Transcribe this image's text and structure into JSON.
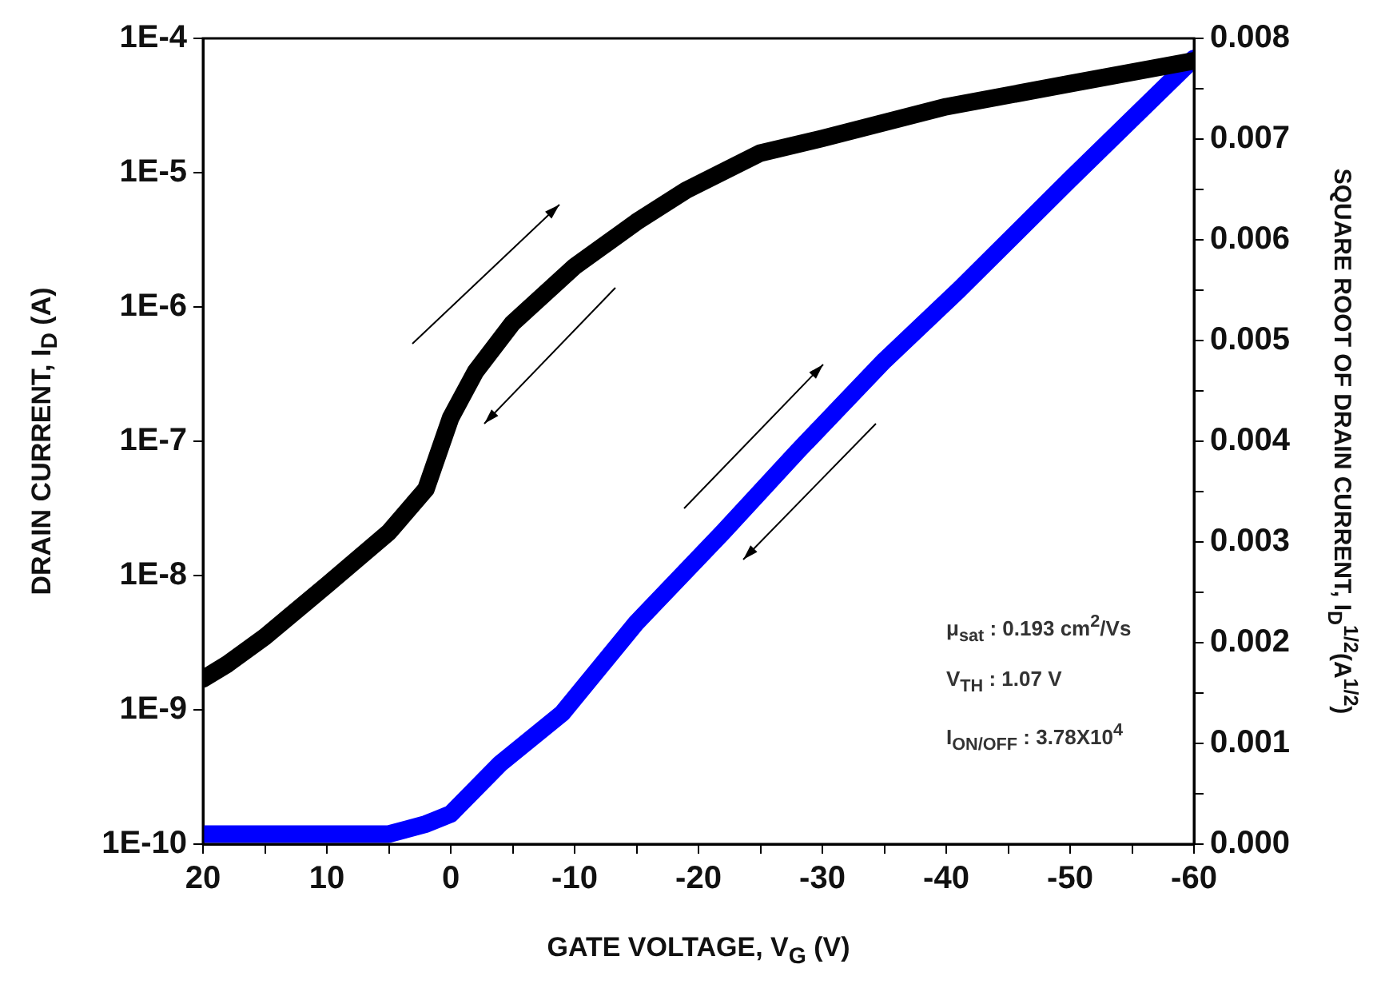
{
  "chart_data": {
    "type": "line",
    "xlabel": "GATE VOLTAGE, V$_{G}$ (V)",
    "ylabel": "DRAIN CURRENT, I$_{D}$ (A)",
    "y2label": "SQUARE ROOT OF DRAIN CURRENT, I$_{D}$$^{1/2}$(A$^{1/2}$)",
    "xlim": [
      20,
      -60
    ],
    "xticks": [
      20,
      {
        "value": 15,
        "label": null
      },
      10,
      {
        "value": 5,
        "label": null
      },
      0,
      {
        "value": -5,
        "label": null
      },
      -10,
      {
        "value": -15,
        "label": null
      },
      -20,
      {
        "value": -25,
        "label": null
      },
      -30,
      {
        "value": -35,
        "label": null
      },
      -40,
      {
        "value": -45,
        "label": null
      },
      -50,
      {
        "value": -55,
        "label": null
      },
      -60
    ],
    "ylim": [
      1e-10,
      0.0001
    ],
    "yticks": [
      {
        "value": 1e-10,
        "label": "1E-10"
      },
      {
        "value": 1e-09,
        "label": "1E-9"
      },
      {
        "value": 1e-08,
        "label": "1E-8"
      },
      {
        "value": 1e-07,
        "label": "1E-7"
      },
      {
        "value": 1e-06,
        "label": "1E-6"
      },
      {
        "value": 1e-05,
        "label": "1E-5"
      },
      {
        "value": 0.0001,
        "label": "1E-4"
      }
    ],
    "y2lim": [
      0,
      0.008
    ],
    "y2ticks": [
      {
        "value": 0,
        "label": "0.000"
      },
      {
        "value": 0.0005,
        "label": null
      },
      {
        "value": 0.001,
        "label": "0.001"
      },
      {
        "value": 0.0015,
        "label": null
      },
      {
        "value": 0.002,
        "label": "0.002"
      },
      {
        "value": 0.0025,
        "label": null
      },
      {
        "value": 0.003,
        "label": "0.003"
      },
      {
        "value": 0.0035,
        "label": null
      },
      {
        "value": 0.004,
        "label": "0.004"
      },
      {
        "value": 0.0045,
        "label": null
      },
      {
        "value": 0.005,
        "label": "0.005"
      },
      {
        "value": 0.0055,
        "label": null
      },
      {
        "value": 0.006,
        "label": "0.006"
      },
      {
        "value": 0.0065,
        "label": null
      },
      {
        "value": 0.007,
        "label": "0.007"
      },
      {
        "value": 0.0075,
        "label": null
      },
      {
        "value": 0.008,
        "label": "0.008"
      }
    ],
    "log": "y",
    "grid": false,
    "legend": false,
    "line_style": "solid",
    "series": [
      {
        "color": "#000000",
        "x": [
          20,
          18,
          15,
          10,
          5,
          2,
          0,
          -2,
          -5,
          -10,
          -15,
          -19,
          -25,
          -30,
          -40,
          -50,
          -60
        ],
        "values": [
          1.7e-09,
          2.2e-09,
          3.5e-09,
          8.5e-09,
          2.1e-08,
          4.4e-08,
          1.5e-07,
          3.3e-07,
          7.6e-07,
          2e-06,
          4.3e-06,
          7.4e-06,
          1.4e-05,
          1.8e-05,
          3.1e-05,
          4.6e-05,
          6.8e-05
        ]
      },
      {
        "color": "#0000ff",
        "axis": "y2",
        "x": [
          20,
          10,
          5,
          2,
          0,
          -4,
          -9,
          -15,
          -22,
          -28,
          -35,
          -41,
          -50,
          -60
        ],
        "values": [
          0.0001,
          0.0001,
          0.0001,
          0.0002,
          0.0003,
          0.0008,
          0.0013,
          0.0022,
          0.0031,
          0.0039,
          0.0048,
          0.0055,
          0.0066,
          0.0078
        ]
      }
    ],
    "annotations": [
      "μ$_{sat}$ : 0.193 cm$^{2}$/Vs",
      "V$_{TH}$ : 1.07 V",
      "I$_{ON/OFF}$ : 3.78X10$^{4}$"
    ]
  }
}
